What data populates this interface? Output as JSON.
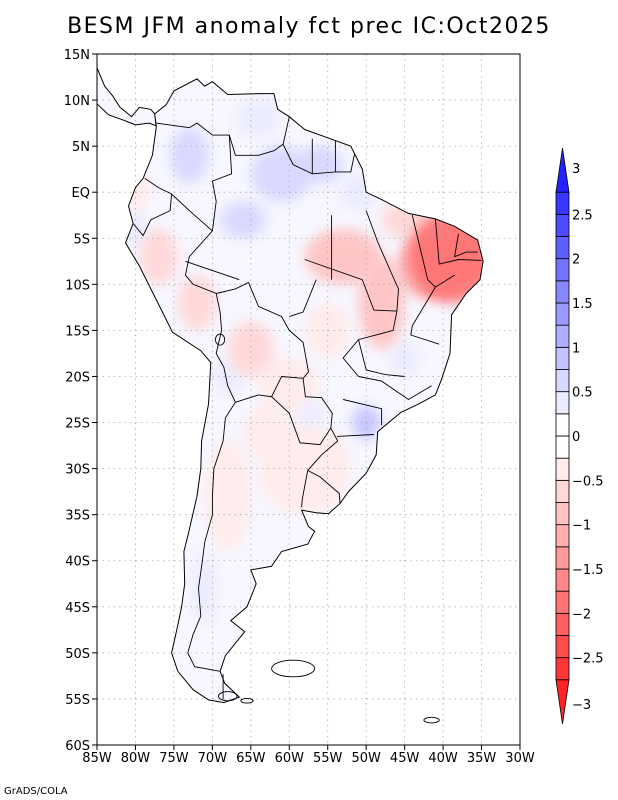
{
  "title": "BESM  JFM anomaly fct prec IC:Oct2025",
  "credit": "GrADS/COLA",
  "map": {
    "lon_range": [
      -85,
      -30
    ],
    "lat_range": [
      -60,
      15
    ],
    "lon_ticks": [
      {
        "value": -85,
        "label": "85W"
      },
      {
        "value": -80,
        "label": "80W"
      },
      {
        "value": -75,
        "label": "75W"
      },
      {
        "value": -70,
        "label": "70W"
      },
      {
        "value": -65,
        "label": "65W"
      },
      {
        "value": -60,
        "label": "60W"
      },
      {
        "value": -55,
        "label": "55W"
      },
      {
        "value": -50,
        "label": "50W"
      },
      {
        "value": -45,
        "label": "45W"
      },
      {
        "value": -40,
        "label": "40W"
      },
      {
        "value": -35,
        "label": "35W"
      },
      {
        "value": -30,
        "label": "30W"
      }
    ],
    "lat_ticks": [
      {
        "value": 15,
        "label": "15N"
      },
      {
        "value": 10,
        "label": "10N"
      },
      {
        "value": 5,
        "label": "5N"
      },
      {
        "value": 0,
        "label": "EQ"
      },
      {
        "value": -5,
        "label": "5S"
      },
      {
        "value": -10,
        "label": "10S"
      },
      {
        "value": -15,
        "label": "15S"
      },
      {
        "value": -20,
        "label": "20S"
      },
      {
        "value": -25,
        "label": "25S"
      },
      {
        "value": -30,
        "label": "30S"
      },
      {
        "value": -35,
        "label": "35S"
      },
      {
        "value": -40,
        "label": "40S"
      },
      {
        "value": -45,
        "label": "45S"
      },
      {
        "value": -50,
        "label": "50S"
      },
      {
        "value": -55,
        "label": "55S"
      },
      {
        "value": -60,
        "label": "60S"
      }
    ],
    "colors": {
      "pos": [
        "#ffffff",
        "#ebebff",
        "#d7d7ff",
        "#c3c3ff",
        "#afafff",
        "#9b9bff",
        "#8787ff",
        "#7373ff",
        "#5f5fff",
        "#4b4bff",
        "#3737ff",
        "#2323ff",
        "#0000f0"
      ],
      "neg": [
        "#ffffff",
        "#ffebeb",
        "#ffd7d7",
        "#ffc3c3",
        "#ffafaf",
        "#ff9b9b",
        "#ff8787",
        "#ff7373",
        "#ff5f5f",
        "#ff4b4b",
        "#ff3737",
        "#ff2323",
        "#f00000"
      ],
      "outline": "#000000",
      "grid": "#aaaaaa"
    },
    "anomaly_blobs": [
      {
        "lon": -39,
        "lat": -7,
        "rlon": 5.5,
        "rlat": 5,
        "value": -1.9
      },
      {
        "lon": -42,
        "lat": -8,
        "rlon": 4,
        "rlat": 3.5,
        "value": -1.2
      },
      {
        "lon": -37,
        "lat": -7,
        "rlon": 2.5,
        "rlat": 2.5,
        "value": -1.0
      },
      {
        "lon": -53,
        "lat": -7,
        "rlon": 5,
        "rlat": 3,
        "value": -0.8
      },
      {
        "lon": -48,
        "lat": -12,
        "rlon": 3,
        "rlat": 5,
        "value": -0.9
      },
      {
        "lon": -45,
        "lat": -3,
        "rlon": 3,
        "rlat": 2,
        "value": -0.5
      },
      {
        "lon": -77,
        "lat": -7,
        "rlon": 2.5,
        "rlat": 3,
        "value": -0.6
      },
      {
        "lon": -80,
        "lat": 0,
        "rlon": 2,
        "rlat": 2,
        "value": -0.4
      },
      {
        "lon": -72,
        "lat": -12,
        "rlon": 2.5,
        "rlat": 3,
        "value": -0.5
      },
      {
        "lon": -65,
        "lat": -17,
        "rlon": 3,
        "rlat": 3,
        "value": -0.6
      },
      {
        "lon": -63,
        "lat": -26,
        "rlon": 3,
        "rlat": 3,
        "value": -0.4
      },
      {
        "lon": -60,
        "lat": -21,
        "rlon": 4,
        "rlat": 3,
        "value": -0.3
      },
      {
        "lon": -58,
        "lat": -30,
        "rlon": 6,
        "rlat": 5,
        "value": -0.25
      },
      {
        "lon": -68,
        "lat": -33,
        "rlon": 3,
        "rlat": 6,
        "value": -0.25
      },
      {
        "lon": -55,
        "lat": -15,
        "rlon": 3,
        "rlat": 3,
        "value": -0.35
      },
      {
        "lon": -61,
        "lat": 2,
        "rlon": 4,
        "rlat": 3,
        "value": 0.6
      },
      {
        "lon": -66,
        "lat": -3,
        "rlon": 3,
        "rlat": 2,
        "value": 0.5
      },
      {
        "lon": -56,
        "lat": 3,
        "rlon": 3,
        "rlat": 2,
        "value": 0.5
      },
      {
        "lon": -51,
        "lat": 0,
        "rlon": 2.5,
        "rlat": 2,
        "value": 0.4
      },
      {
        "lon": -73,
        "lat": 4,
        "rlon": 2.5,
        "rlat": 3,
        "value": 0.5
      },
      {
        "lon": -64,
        "lat": 8,
        "rlon": 3,
        "rlat": 2,
        "value": 0.25
      },
      {
        "lon": -50,
        "lat": -25,
        "rlon": 1.8,
        "rlat": 1.8,
        "value": 0.9
      },
      {
        "lon": -57,
        "lat": -24,
        "rlon": 1.5,
        "rlat": 1.5,
        "value": 0.3
      },
      {
        "lon": -68,
        "lat": -20,
        "rlon": 2,
        "rlat": 2,
        "value": 0.4
      },
      {
        "lon": -71,
        "lat": -43,
        "rlon": 1.5,
        "rlat": 4,
        "value": 0.35
      },
      {
        "lon": -80,
        "lat": -4,
        "rlon": 1.5,
        "rlat": 2,
        "value": 0.3
      },
      {
        "lon": -45,
        "lat": -18,
        "rlon": 2,
        "rlat": 2,
        "value": 0.3
      }
    ]
  },
  "colorbar": {
    "min": -3,
    "max": 3,
    "levels": [
      -3,
      -2.75,
      -2.5,
      -2.25,
      -2,
      -1.75,
      -1.5,
      -1.25,
      -1,
      -0.75,
      -0.5,
      -0.25,
      0,
      0.25,
      0.5,
      0.75,
      1,
      1.25,
      1.5,
      1.75,
      2,
      2.25,
      2.5,
      2.75,
      3
    ],
    "labels": [
      {
        "value": 3,
        "text": "3"
      },
      {
        "value": 2.5,
        "text": "2.5"
      },
      {
        "value": 2,
        "text": "2"
      },
      {
        "value": 1.5,
        "text": "1.5"
      },
      {
        "value": 1,
        "text": "1"
      },
      {
        "value": 0.5,
        "text": "0.5"
      },
      {
        "value": 0,
        "text": "0"
      },
      {
        "value": -0.5,
        "text": "−0.5"
      },
      {
        "value": -1,
        "text": "−1"
      },
      {
        "value": -1.5,
        "text": "−1.5"
      },
      {
        "value": -2,
        "text": "−2"
      },
      {
        "value": -2.5,
        "text": "−2.5"
      },
      {
        "value": -3,
        "text": "−3"
      }
    ]
  }
}
